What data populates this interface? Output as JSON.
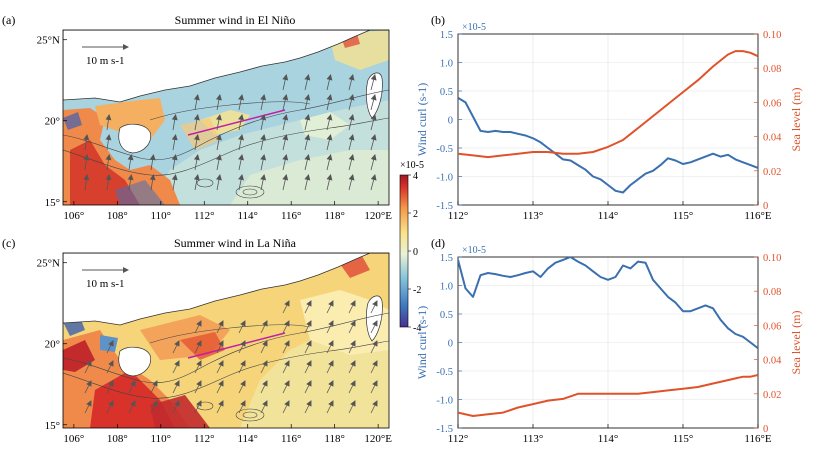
{
  "colors": {
    "curl": "#3a6fb0",
    "sea": "#e0522a",
    "land": "#ffffff",
    "contour": "#444444",
    "arrow": "#555555",
    "magenta": "#c21fa5",
    "cbar": [
      "#4a2f8f",
      "#3f78c0",
      "#86c3dc",
      "#e9f2d4",
      "#fbe38b",
      "#f39a4a",
      "#d8322b",
      "#9e1a23"
    ]
  },
  "chart_data": [
    {
      "type": "heatmap",
      "panel": "(a)",
      "title": "Summer wind in El Niño",
      "xticks": [
        "106°",
        "108°",
        "110°",
        "112°",
        "114°",
        "116°",
        "118°",
        "120°E"
      ],
      "yticks": [
        "15°",
        "20°",
        "25°N"
      ],
      "xlim": [
        105.5,
        120.5
      ],
      "ylim": [
        14.8,
        25.6
      ],
      "ref_arrow": "10 m s-1",
      "colorbar": {
        "ticks": [
          "4",
          "2",
          "0",
          "-2",
          "-4"
        ],
        "range": [
          -4,
          4
        ],
        "exponent": "×10-5"
      }
    },
    {
      "type": "heatmap",
      "panel": "(c)",
      "title": "Summer wind in La Niña",
      "xticks": [
        "106°",
        "108°",
        "110°",
        "112°",
        "114°",
        "116°",
        "118°",
        "120°E"
      ],
      "yticks": [
        "15°",
        "20°",
        "25°N"
      ],
      "xlim": [
        105.5,
        120.5
      ],
      "ylim": [
        14.8,
        25.6
      ],
      "ref_arrow": "10 m s-1"
    },
    {
      "type": "line",
      "panel": "(b)",
      "xlim": [
        112,
        116
      ],
      "xticks": [
        "112°",
        "113°",
        "114°",
        "115°",
        "116°E"
      ],
      "y_left": {
        "label": "Wind curl (s-1)",
        "ticks": [
          "1.5",
          "1.0",
          "0.5",
          "0",
          "-0.5",
          "-1.0",
          "-1.5"
        ],
        "range": [
          -1.5,
          1.5
        ],
        "exponent": "×10-5"
      },
      "y_right": {
        "label": "Sea level (m)",
        "ticks": [
          "0.10",
          "0.08",
          "0.06",
          "0.04",
          "0.02",
          "0"
        ],
        "range": [
          0,
          0.1
        ]
      },
      "series": [
        {
          "name": "Wind curl",
          "axis": "left",
          "x": [
            112.0,
            112.1,
            112.2,
            112.3,
            112.4,
            112.5,
            112.6,
            112.7,
            112.8,
            112.9,
            113.0,
            113.1,
            113.2,
            113.3,
            113.4,
            113.5,
            113.6,
            113.7,
            113.8,
            113.9,
            114.0,
            114.1,
            114.2,
            114.3,
            114.4,
            114.5,
            114.6,
            114.7,
            114.8,
            114.9,
            115.0,
            115.1,
            115.2,
            115.3,
            115.4,
            115.5,
            115.6,
            115.7,
            115.8,
            115.9,
            116.0
          ],
          "values": [
            0.38,
            0.3,
            0.05,
            -0.2,
            -0.22,
            -0.2,
            -0.22,
            -0.22,
            -0.25,
            -0.28,
            -0.33,
            -0.4,
            -0.5,
            -0.6,
            -0.7,
            -0.72,
            -0.8,
            -0.88,
            -1.0,
            -1.05,
            -1.15,
            -1.25,
            -1.28,
            -1.15,
            -1.05,
            -0.95,
            -0.9,
            -0.8,
            -0.68,
            -0.72,
            -0.78,
            -0.75,
            -0.7,
            -0.65,
            -0.6,
            -0.65,
            -0.62,
            -0.7,
            -0.75,
            -0.8,
            -0.85
          ]
        },
        {
          "name": "Sea level",
          "axis": "right",
          "x": [
            112.0,
            112.2,
            112.4,
            112.6,
            112.8,
            113.0,
            113.2,
            113.4,
            113.6,
            113.8,
            114.0,
            114.2,
            114.4,
            114.6,
            114.8,
            115.0,
            115.2,
            115.4,
            115.6,
            115.7,
            115.8,
            115.9,
            116.0
          ],
          "values": [
            0.03,
            0.029,
            0.028,
            0.029,
            0.03,
            0.031,
            0.031,
            0.03,
            0.03,
            0.031,
            0.034,
            0.038,
            0.045,
            0.052,
            0.059,
            0.066,
            0.073,
            0.081,
            0.088,
            0.09,
            0.09,
            0.089,
            0.087
          ]
        }
      ]
    },
    {
      "type": "line",
      "panel": "(d)",
      "xlim": [
        112,
        116
      ],
      "xticks": [
        "112°",
        "113°",
        "114°",
        "115°",
        "116°E"
      ],
      "y_left": {
        "label": "Wind curl (s-1)",
        "ticks": [
          "1.5",
          "1.0",
          "0.5",
          "0",
          "-0.5",
          "-1.0",
          "-1.5"
        ],
        "range": [
          -1.5,
          1.5
        ],
        "exponent": "×10-5"
      },
      "y_right": {
        "label": "Sea level (m)",
        "ticks": [
          "0.10",
          "0.08",
          "0.06",
          "0.04",
          "0.02",
          "0"
        ],
        "range": [
          0,
          0.1
        ]
      },
      "series": [
        {
          "name": "Wind curl",
          "axis": "left",
          "x": [
            112.0,
            112.1,
            112.2,
            112.3,
            112.4,
            112.5,
            112.6,
            112.7,
            112.8,
            112.9,
            113.0,
            113.1,
            113.2,
            113.3,
            113.4,
            113.5,
            113.6,
            113.7,
            113.8,
            113.9,
            114.0,
            114.1,
            114.2,
            114.3,
            114.4,
            114.5,
            114.6,
            114.7,
            114.8,
            114.9,
            115.0,
            115.1,
            115.2,
            115.3,
            115.4,
            115.5,
            115.6,
            115.7,
            115.8,
            115.9,
            116.0
          ],
          "values": [
            1.45,
            0.95,
            0.8,
            1.18,
            1.22,
            1.2,
            1.17,
            1.15,
            1.18,
            1.22,
            1.25,
            1.15,
            1.3,
            1.4,
            1.45,
            1.5,
            1.42,
            1.35,
            1.25,
            1.15,
            1.1,
            1.15,
            1.35,
            1.3,
            1.42,
            1.4,
            1.1,
            0.95,
            0.8,
            0.7,
            0.55,
            0.55,
            0.6,
            0.65,
            0.6,
            0.4,
            0.25,
            0.15,
            0.1,
            0.0,
            -0.1
          ]
        },
        {
          "name": "Sea level",
          "axis": "right",
          "x": [
            112.0,
            112.2,
            112.4,
            112.6,
            112.8,
            113.0,
            113.2,
            113.4,
            113.6,
            113.8,
            114.0,
            114.2,
            114.4,
            114.6,
            114.8,
            115.0,
            115.2,
            115.4,
            115.6,
            115.7,
            115.8,
            115.9,
            116.0
          ],
          "values": [
            0.009,
            0.007,
            0.008,
            0.009,
            0.012,
            0.014,
            0.016,
            0.017,
            0.02,
            0.02,
            0.02,
            0.02,
            0.02,
            0.021,
            0.022,
            0.023,
            0.024,
            0.026,
            0.028,
            0.029,
            0.03,
            0.03,
            0.031
          ]
        }
      ]
    }
  ]
}
